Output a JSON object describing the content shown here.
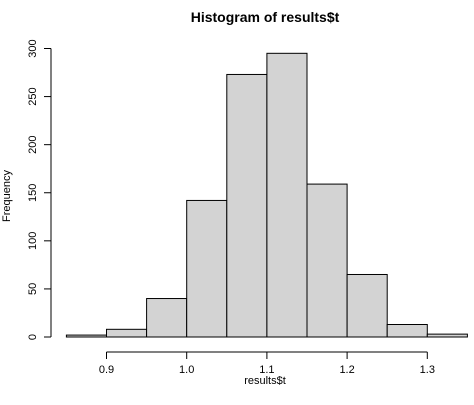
{
  "chart_data": {
    "type": "bar",
    "title": "Histogram of results$t",
    "xlabel": "results$t",
    "ylabel": "Frequency",
    "bins": [
      {
        "start": 0.85,
        "end": 0.9,
        "count": 2
      },
      {
        "start": 0.9,
        "end": 0.95,
        "count": 8
      },
      {
        "start": 0.95,
        "end": 1.0,
        "count": 40
      },
      {
        "start": 1.0,
        "end": 1.05,
        "count": 142
      },
      {
        "start": 1.05,
        "end": 1.1,
        "count": 273
      },
      {
        "start": 1.1,
        "end": 1.15,
        "count": 295
      },
      {
        "start": 1.15,
        "end": 1.2,
        "count": 159
      },
      {
        "start": 1.2,
        "end": 1.25,
        "count": 65
      },
      {
        "start": 1.25,
        "end": 1.3,
        "count": 13
      },
      {
        "start": 1.3,
        "end": 1.35,
        "count": 3
      }
    ],
    "xlim": [
      0.85,
      1.35
    ],
    "ylim": [
      0,
      300
    ],
    "xticks": [
      0.9,
      1.0,
      1.1,
      1.2,
      1.3
    ],
    "xtick_labels": [
      "0.9",
      "1.0",
      "1.1",
      "1.2",
      "1.3"
    ],
    "yticks": [
      0,
      50,
      100,
      150,
      200,
      250,
      300
    ],
    "ytick_labels": [
      "0",
      "50",
      "100",
      "150",
      "200",
      "250",
      "300"
    ],
    "bar_fill": "#d3d3d3",
    "bar_stroke": "#000000",
    "grid": false,
    "legend": "none"
  }
}
